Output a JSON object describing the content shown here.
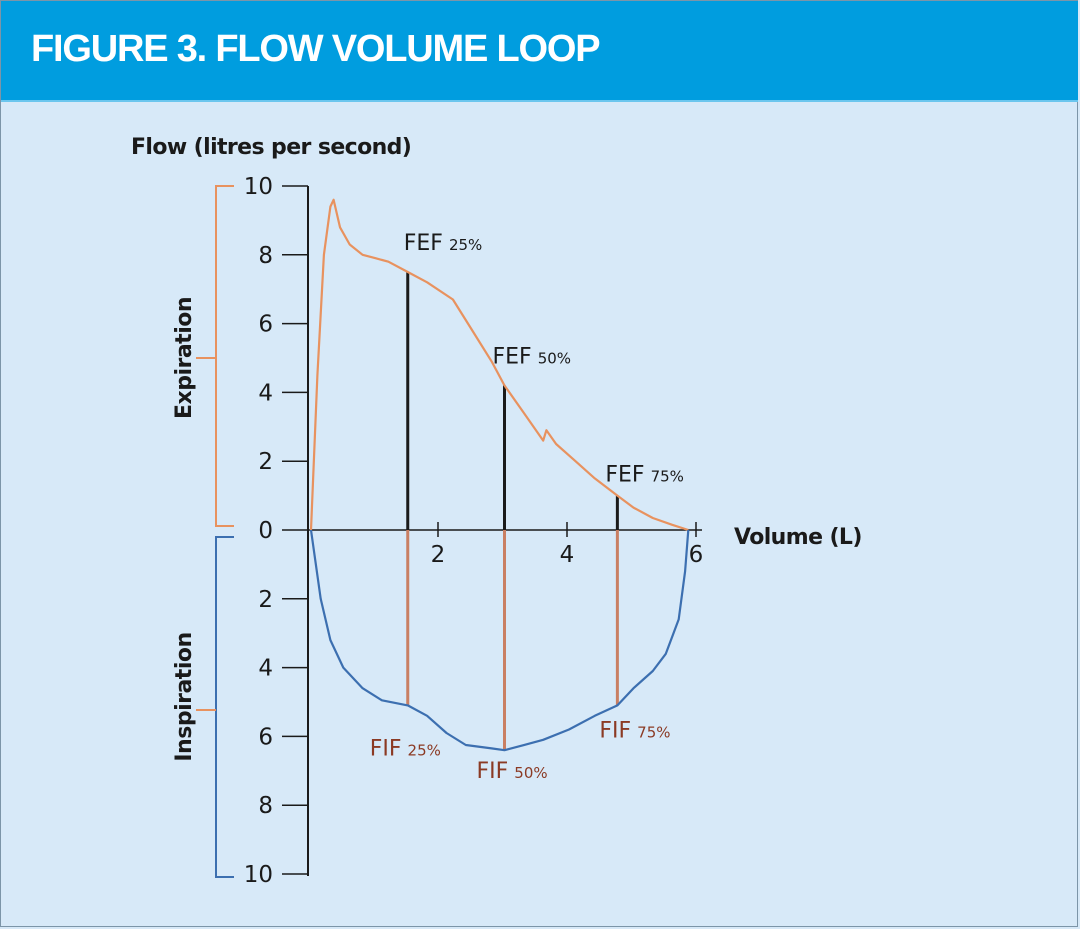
{
  "header": {
    "title": "FIGURE 3. FLOW VOLUME LOOP"
  },
  "colors": {
    "header_bg": "#009ddf",
    "page_bg": "#d7e9f8",
    "expiration": "#e8925f",
    "inspiration": "#3c6fb0",
    "fif_lines": "#c97f63",
    "fif_text": "#8b3a24",
    "axis": "#1a1a1a"
  },
  "chart_data": {
    "type": "line",
    "title": "FIGURE 3. FLOW VOLUME LOOP",
    "ylabel": "Flow (litres per second)",
    "xlabel": "Volume (L)",
    "x_ticks": [
      "2",
      "4",
      "6"
    ],
    "y_ticks_expiration": [
      "10",
      "8",
      "6",
      "4",
      "2",
      "0"
    ],
    "y_ticks_inspiration": [
      "2",
      "4",
      "6",
      "8",
      "10"
    ],
    "xlim": [
      0,
      6
    ],
    "ylim": [
      -10,
      10
    ],
    "grid": false,
    "brackets": [
      {
        "label": "Expiration",
        "range": [
          0,
          10
        ]
      },
      {
        "label": "Inspiration",
        "range": [
          0,
          -10
        ]
      }
    ],
    "series": [
      {
        "name": "Expiration",
        "x": [
          0,
          0.1,
          0.2,
          0.3,
          0.35,
          0.45,
          0.6,
          0.8,
          1.0,
          1.2,
          1.5,
          1.8,
          2.2,
          2.5,
          2.8,
          3.0,
          3.3,
          3.6,
          3.65,
          3.8,
          4.1,
          4.4,
          4.75,
          5.0,
          5.3,
          5.6,
          5.85
        ],
        "y": [
          0,
          4.5,
          8.0,
          9.4,
          9.6,
          8.8,
          8.3,
          8.0,
          7.9,
          7.8,
          7.5,
          7.2,
          6.7,
          5.8,
          4.9,
          4.2,
          3.4,
          2.6,
          2.9,
          2.5,
          2.0,
          1.5,
          1.0,
          0.65,
          0.35,
          0.15,
          0
        ]
      },
      {
        "name": "Inspiration",
        "x": [
          0,
          0.15,
          0.3,
          0.5,
          0.8,
          1.1,
          1.5,
          1.8,
          2.1,
          2.4,
          2.8,
          3.0,
          3.3,
          3.6,
          4.0,
          4.4,
          4.75,
          5.0,
          5.3,
          5.5,
          5.7,
          5.8,
          5.85
        ],
        "y": [
          0,
          -2.0,
          -3.2,
          -4.0,
          -4.6,
          -4.95,
          -5.1,
          -5.4,
          -5.9,
          -6.25,
          -6.35,
          -6.4,
          -6.25,
          -6.1,
          -5.8,
          -5.4,
          -5.1,
          -4.6,
          -4.1,
          -3.6,
          -2.6,
          -1.2,
          0
        ]
      }
    ],
    "annotations": [
      {
        "label": "FEF",
        "sub": "25%",
        "x": 1.5,
        "y": 7.5
      },
      {
        "label": "FEF",
        "sub": "50%",
        "x": 3.0,
        "y": 4.2
      },
      {
        "label": "FEF",
        "sub": "75%",
        "x": 4.75,
        "y": 1.0
      },
      {
        "label": "FIF",
        "sub": "25%",
        "x": 1.5,
        "y": -5.1
      },
      {
        "label": "FIF",
        "sub": "50%",
        "x": 3.0,
        "y": -6.4
      },
      {
        "label": "FIF",
        "sub": "75%",
        "x": 4.75,
        "y": -5.1
      }
    ]
  }
}
